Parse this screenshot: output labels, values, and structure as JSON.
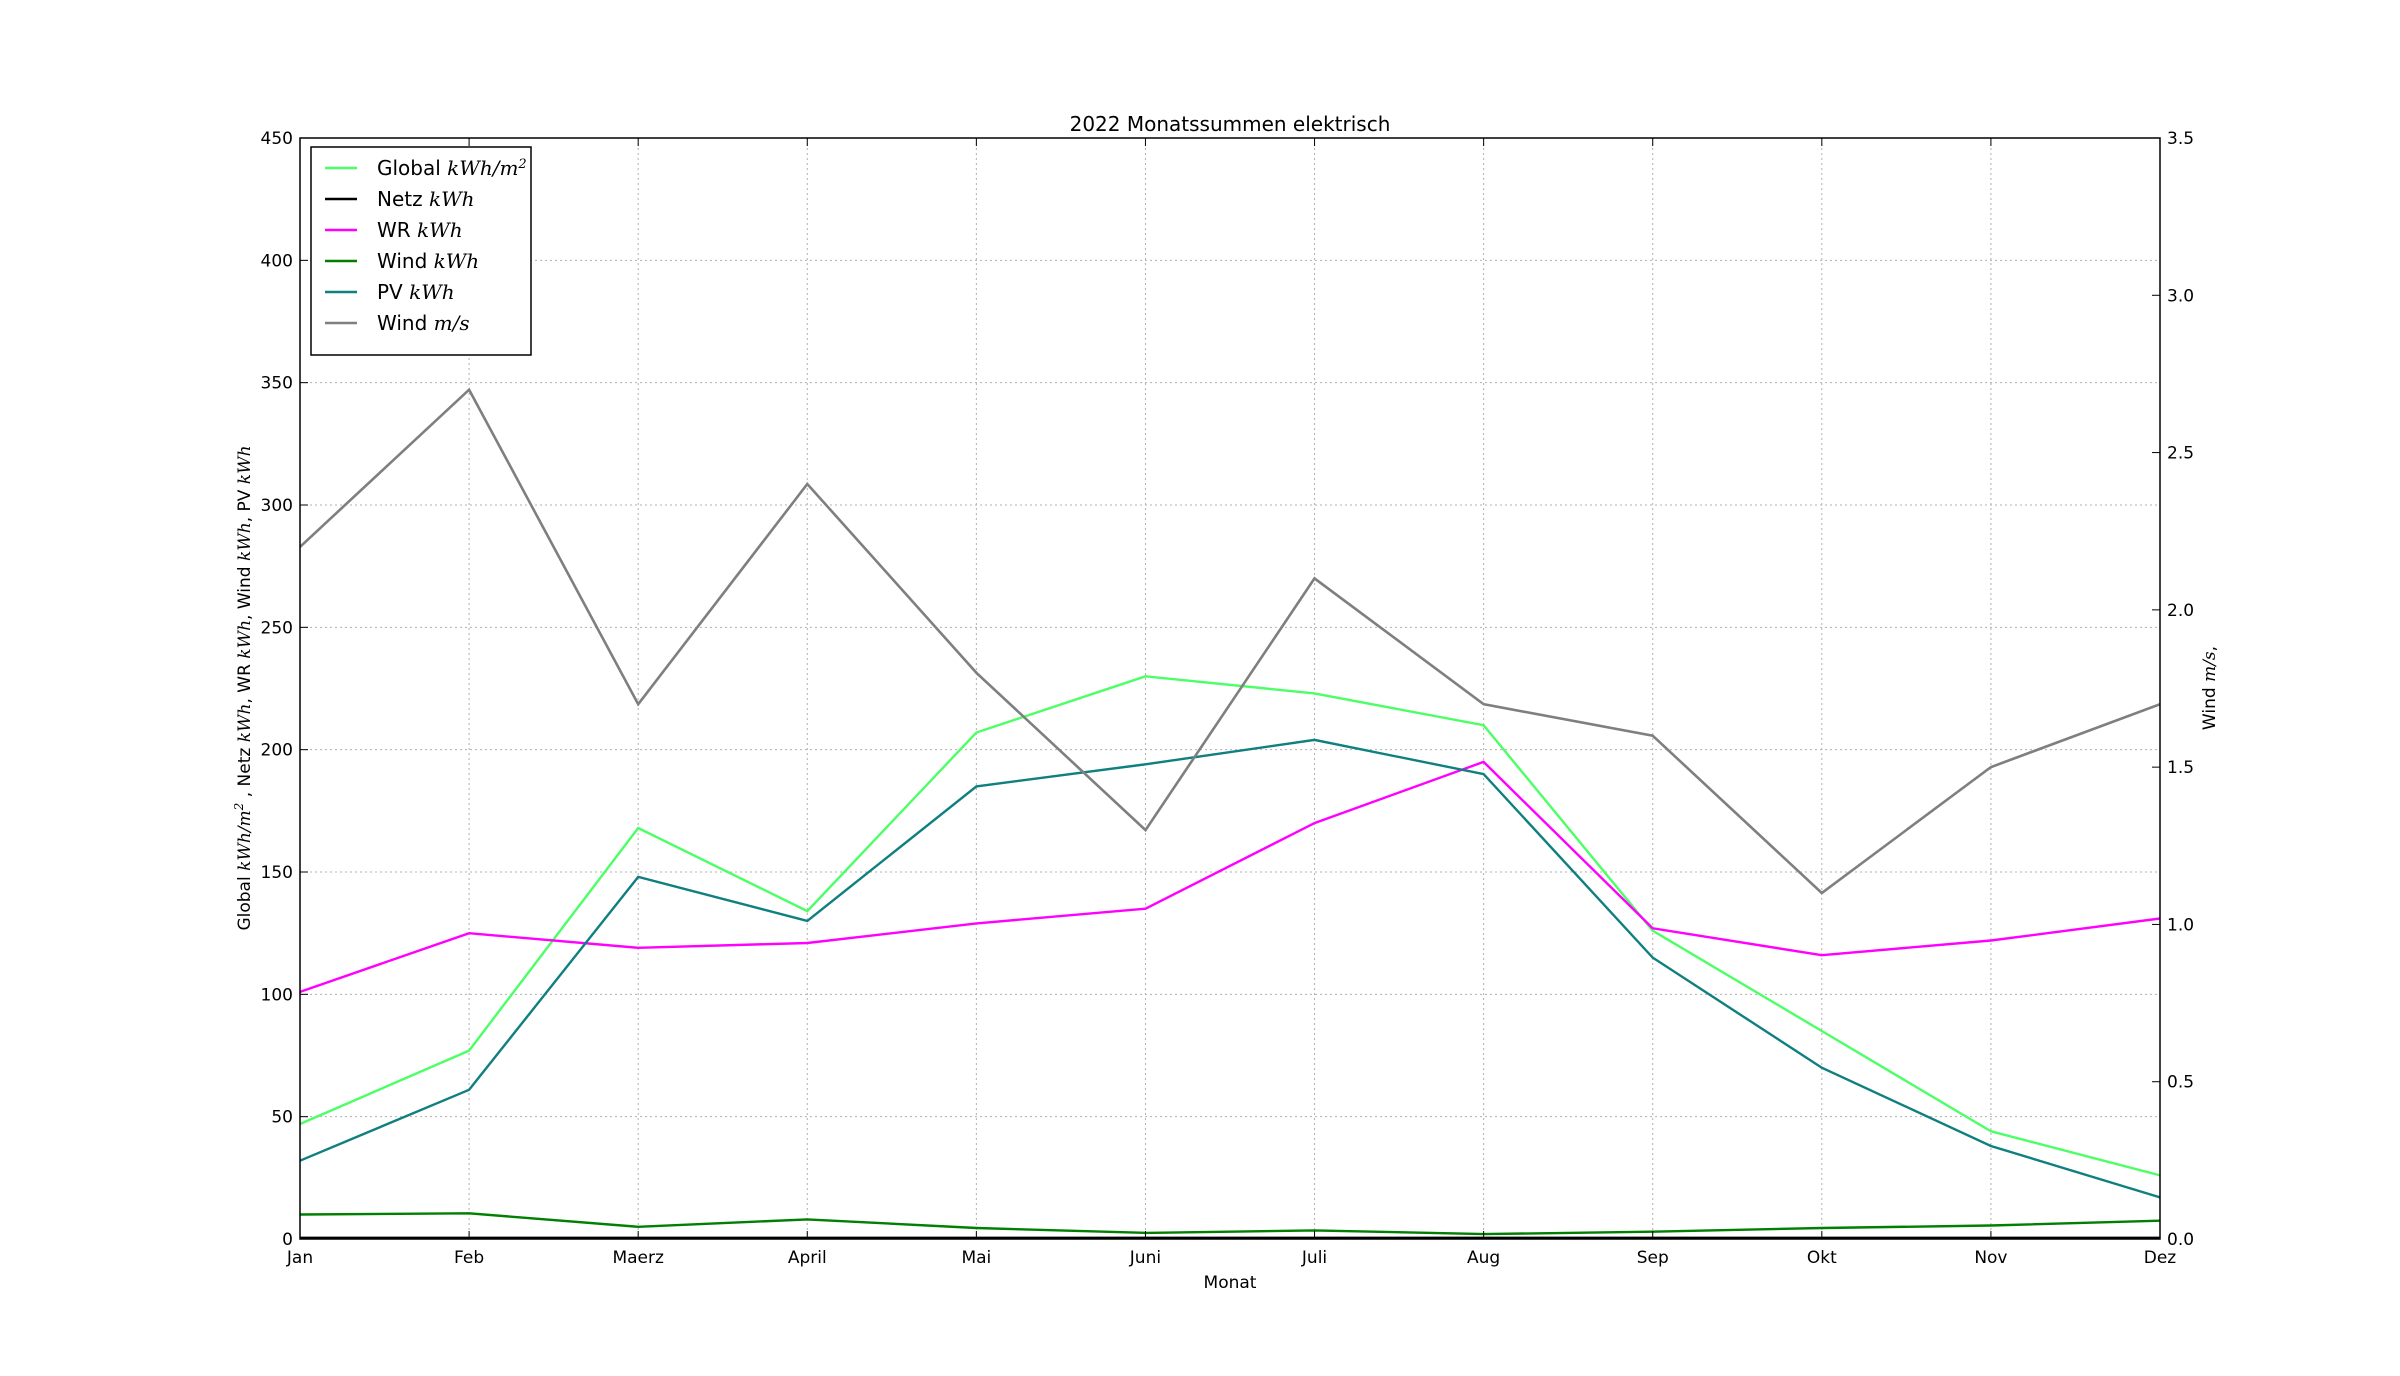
{
  "chart_data": {
    "type": "line",
    "title": "2022 Monatssummen elektrisch",
    "xlabel": "Monat",
    "ylabel_parts": [
      {
        "t": "Global ",
        "u": false
      },
      {
        "t": "kWh/m",
        "u": true
      },
      {
        "t": "2",
        "u": true,
        "sup": true
      },
      {
        "t": " , Netz ",
        "u": false
      },
      {
        "t": "kWh",
        "u": true
      },
      {
        "t": ", WR ",
        "u": false
      },
      {
        "t": "kWh",
        "u": true
      },
      {
        "t": ", Wind ",
        "u": false
      },
      {
        "t": "kWh",
        "u": true
      },
      {
        "t": ", PV ",
        "u": false
      },
      {
        "t": "kWh",
        "u": true
      }
    ],
    "y2label_parts": [
      {
        "t": "Wind ",
        "u": false
      },
      {
        "t": "m/s",
        "u": true
      },
      {
        "t": ",",
        "u": false
      }
    ],
    "categories": [
      "Jan",
      "Feb",
      "Maerz",
      "April",
      "Mai",
      "Juni",
      "Juli",
      "Aug",
      "Sep",
      "Okt",
      "Nov",
      "Dez"
    ],
    "ylim": [
      0,
      450
    ],
    "yticks": [
      0,
      50,
      100,
      150,
      200,
      250,
      300,
      350,
      400,
      450
    ],
    "y2lim": [
      0,
      3.5
    ],
    "y2ticks": [
      "0.0",
      "0.5",
      "1.0",
      "1.5",
      "2.0",
      "2.5",
      "3.0",
      "3.5"
    ],
    "grid": true,
    "legend_position": "top-left",
    "series": [
      {
        "name": "Global",
        "unit_parts": [
          {
            "t": "kWh/m"
          },
          {
            "t": "2",
            "sup": true
          }
        ],
        "color": "#4dff66",
        "axis": "left",
        "values": [
          47,
          77,
          168,
          134,
          207,
          230,
          223,
          210,
          126,
          85,
          44,
          26
        ]
      },
      {
        "name": "Netz",
        "unit_parts": [
          {
            "t": "kWh"
          }
        ],
        "color": "#000000",
        "axis": "left",
        "values": [
          0.5,
          0.5,
          0.5,
          0.5,
          0.5,
          0.5,
          0.5,
          0.5,
          0.5,
          0.5,
          0.5,
          0.5
        ]
      },
      {
        "name": "WR",
        "unit_parts": [
          {
            "t": "kWh"
          }
        ],
        "color": "#ff00ff",
        "axis": "left",
        "values": [
          101,
          125,
          119,
          121,
          129,
          135,
          170,
          195,
          127,
          116,
          122,
          131
        ]
      },
      {
        "name": "Wind",
        "unit_parts": [
          {
            "t": "kWh"
          }
        ],
        "color": "#007f00",
        "axis": "left",
        "values": [
          10,
          10.5,
          5,
          8,
          4.5,
          2.5,
          3.5,
          2,
          3,
          4.5,
          5.5,
          7.5
        ]
      },
      {
        "name": "PV",
        "unit_parts": [
          {
            "t": "kWh"
          }
        ],
        "color": "#0f7f7f",
        "axis": "left",
        "values": [
          32,
          61,
          148,
          130,
          185,
          194,
          204,
          190,
          115,
          70,
          38,
          17
        ]
      },
      {
        "name": "Wind",
        "unit_parts": [
          {
            "t": "m/s"
          }
        ],
        "color": "#7f7f7f",
        "axis": "right",
        "values": [
          2.2,
          2.7,
          1.7,
          2.4,
          1.8,
          1.3,
          2.1,
          1.7,
          1.6,
          1.1,
          1.5,
          1.7
        ]
      }
    ]
  }
}
